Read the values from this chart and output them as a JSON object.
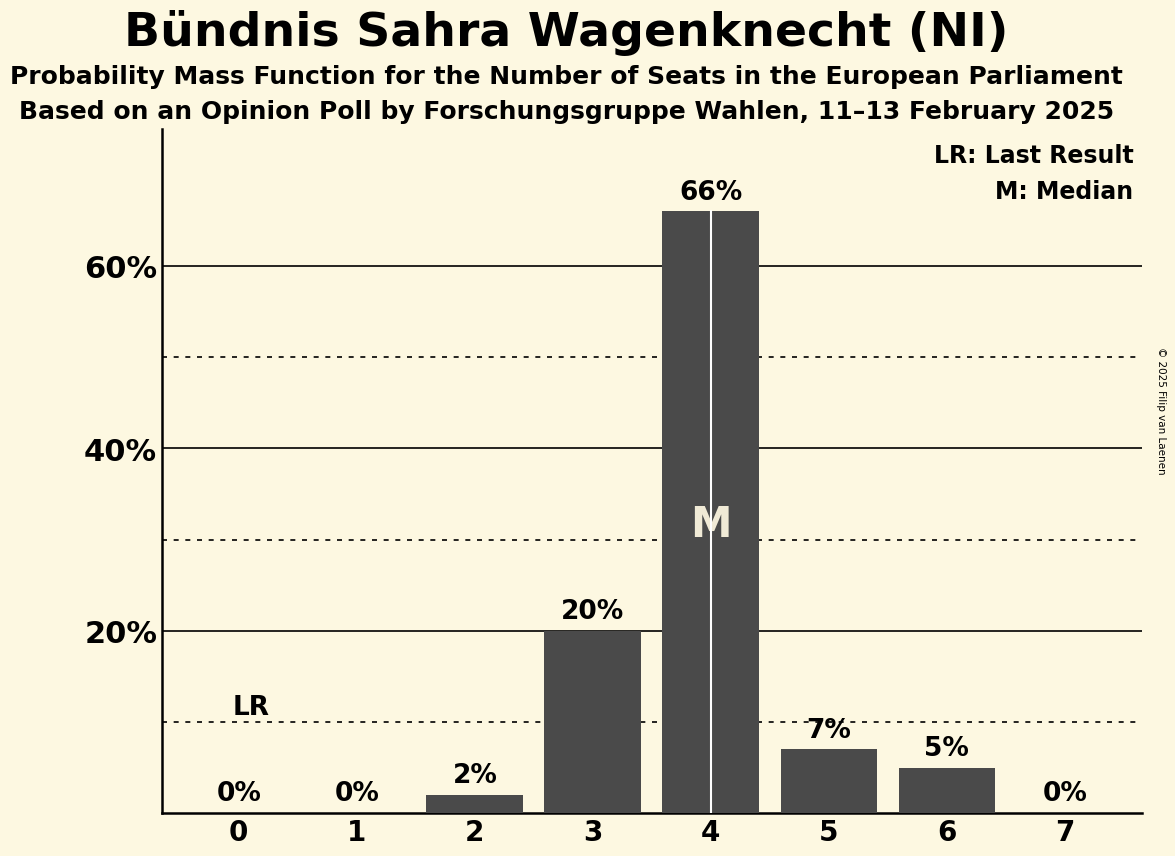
{
  "title": "Bündnis Sahra Wagenknecht (NI)",
  "subtitle1": "Probability Mass Function for the Number of Seats in the European Parliament",
  "subtitle2": "Based on an Opinion Poll by Forschungsgruppe Wahlen, 11–13 February 2025",
  "copyright": "© 2025 Filip van Laenen",
  "categories": [
    0,
    1,
    2,
    3,
    4,
    5,
    6,
    7
  ],
  "values": [
    0.0,
    0.0,
    0.02,
    0.2,
    0.66,
    0.07,
    0.05,
    0.0
  ],
  "bar_color": "#4a4a4a",
  "background_color": "#fdf8e1",
  "bar_labels": [
    "0%",
    "0%",
    "2%",
    "20%",
    "66%",
    "7%",
    "5%",
    "0%"
  ],
  "median_bar": 4,
  "last_result_bar": 0,
  "ylim": [
    0,
    0.75
  ],
  "yticks": [
    0.0,
    0.2,
    0.4,
    0.6
  ],
  "ytick_labels": [
    "",
    "20%",
    "40%",
    "60%"
  ],
  "solid_gridlines": [
    0.2,
    0.4,
    0.6
  ],
  "dotted_gridlines": [
    0.1,
    0.3,
    0.5
  ],
  "legend_lr": "LR: Last Result",
  "legend_m": "M: Median",
  "xlabel_fontsize": 20,
  "ylabel_fontsize": 22,
  "title_fontsize": 34,
  "subtitle_fontsize": 18,
  "bar_label_fontsize": 19,
  "median_label": "M",
  "lr_label": "LR",
  "median_label_fontsize": 30,
  "lr_fontsize": 19,
  "legend_fontsize": 17
}
